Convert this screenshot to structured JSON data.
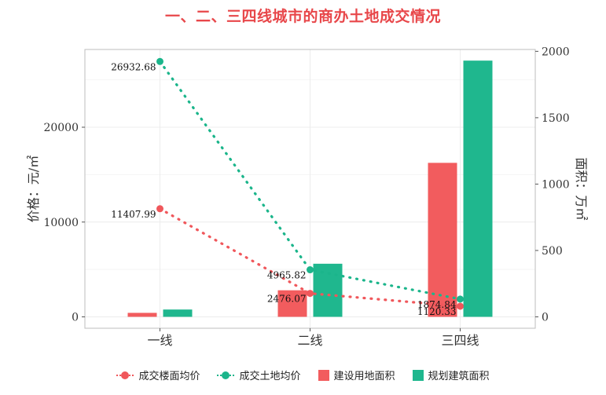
{
  "title": "一、二、三四线城市的商办土地成交情况",
  "colors": {
    "floor_price": "#f0575b",
    "land_price": "#1bb58b",
    "build_area": "#f25c5e",
    "plan_area": "#1fb78e"
  },
  "chart_data": {
    "type": "bar",
    "categories": [
      "一线",
      "二线",
      "三四线"
    ],
    "y_left_label": "价格：元/㎡",
    "y_right_label": "面积：万㎡",
    "y_left_lim": [
      -1200,
      28200
    ],
    "y_right_lim": [
      -86,
      2014
    ],
    "y_left_ticks": [
      0,
      10000,
      20000
    ],
    "y_right_ticks": [
      0,
      500,
      1000,
      1500,
      2000
    ],
    "series": [
      {
        "name": "成交楼面均价",
        "kind": "line",
        "axis": "left",
        "values": [
          11407.99,
          2476.07,
          1120.33
        ],
        "labels": [
          "11407.99",
          "2476.07",
          "1120.33"
        ]
      },
      {
        "name": "成交土地均价",
        "kind": "line",
        "axis": "left",
        "values": [
          26932.68,
          4965.82,
          1874.84
        ],
        "labels": [
          "26932.68",
          "4965.82",
          "1874.84"
        ]
      },
      {
        "name": "建设用地面积",
        "kind": "bar",
        "axis": "right",
        "values": [
          30,
          200,
          1160
        ]
      },
      {
        "name": "规划建筑面积",
        "kind": "bar",
        "axis": "right",
        "values": [
          55,
          400,
          1930
        ]
      }
    ],
    "grid": true,
    "legend_position": "bottom"
  }
}
